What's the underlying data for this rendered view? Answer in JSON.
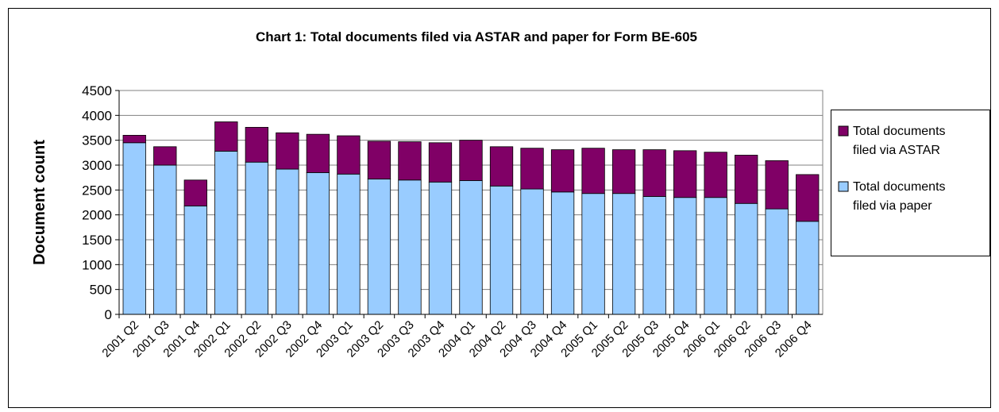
{
  "chart_data": {
    "type": "stacked_bar",
    "title": "Chart 1: Total documents filed via ASTAR and paper for Form BE-605",
    "y_label": "Document count",
    "categories": [
      "2001 Q2",
      "2001 Q3",
      "2001 Q4",
      "2002 Q1",
      "2002 Q2",
      "2002 Q3",
      "2002 Q4",
      "2003 Q1",
      "2003 Q2",
      "2003 Q3",
      "2003 Q4",
      "2004 Q1",
      "2004 Q2",
      "2004 Q3",
      "2004 Q4",
      "2005 Q1",
      "2005 Q2",
      "2005 Q3",
      "2005 Q4",
      "2006 Q1",
      "2006 Q2",
      "2006 Q3",
      "2006 Q4"
    ],
    "series": [
      {
        "name": "Total documents filed via paper",
        "color": "#99ccff",
        "values": [
          3450,
          3000,
          2180,
          3280,
          3060,
          2920,
          2850,
          2820,
          2720,
          2700,
          2660,
          2690,
          2580,
          2520,
          2460,
          2430,
          2430,
          2370,
          2350,
          2350,
          2230,
          2120,
          1870
        ]
      },
      {
        "name": "Total documents filed via ASTAR",
        "color": "#800066",
        "values": [
          150,
          370,
          520,
          590,
          700,
          730,
          770,
          770,
          760,
          770,
          790,
          810,
          790,
          820,
          850,
          910,
          880,
          940,
          940,
          910,
          970,
          970,
          940
        ]
      }
    ],
    "ylim": [
      0,
      4500
    ],
    "yticks": [
      0,
      500,
      1000,
      1500,
      2000,
      2500,
      3000,
      3500,
      4000,
      4500
    ],
    "grid": true
  }
}
